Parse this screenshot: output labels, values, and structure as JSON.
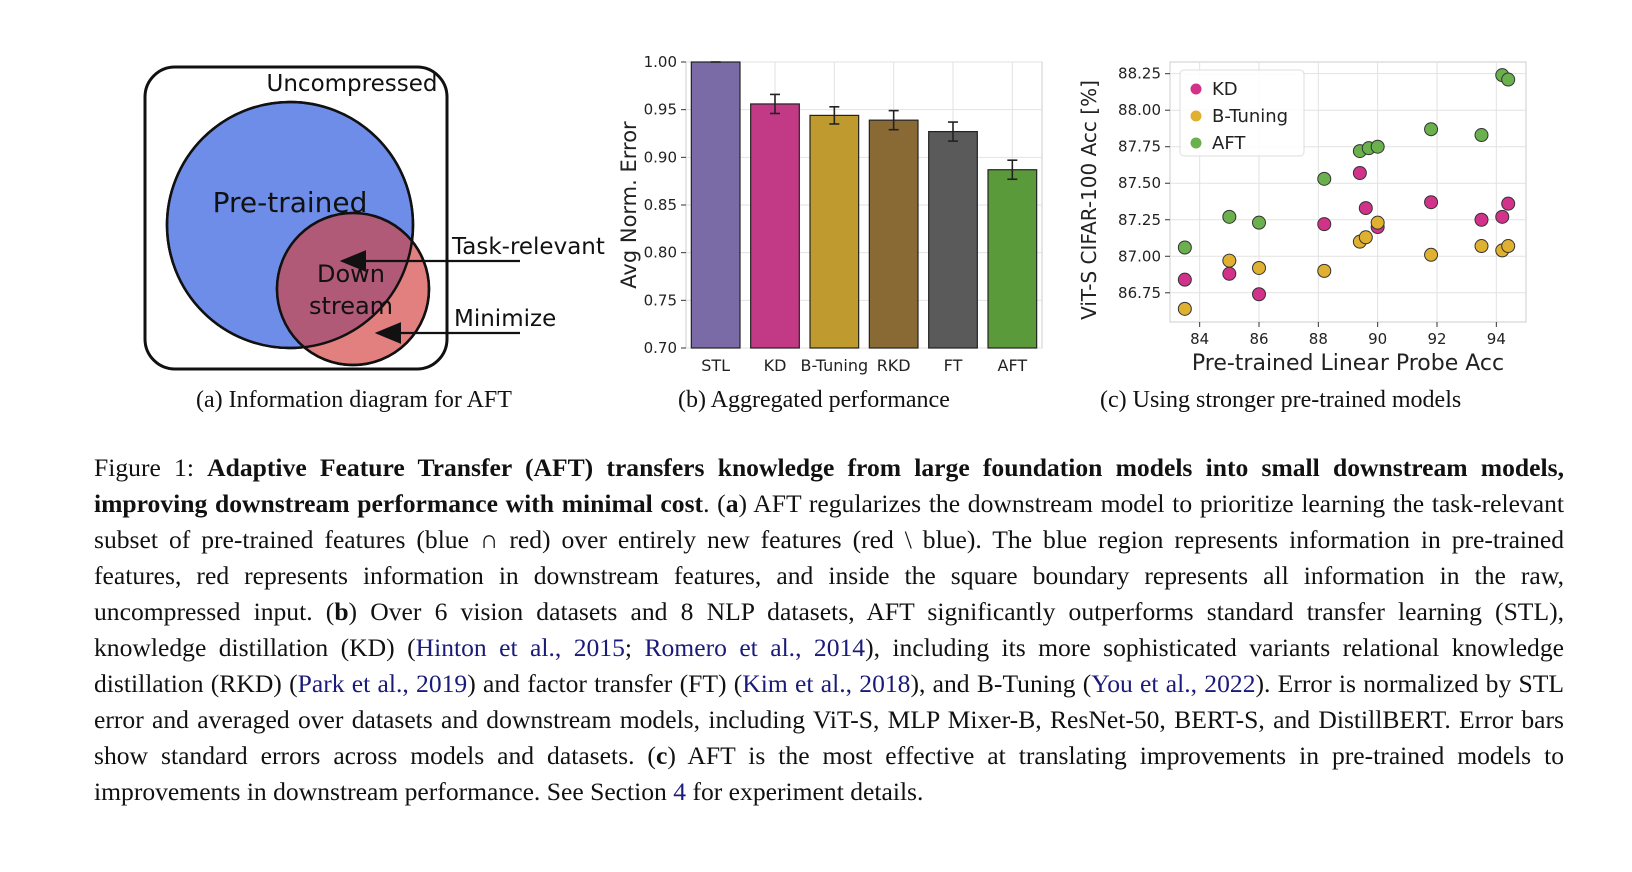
{
  "panel_a": {
    "uncompressed_label": "Uncompressed",
    "pretrained_label": "Pre-trained",
    "downstream_line1": "Down",
    "downstream_line2": "stream",
    "task_relevant_label": "Task-relevant",
    "minimize_label": "Minimize",
    "caption": "(a) Information diagram for AFT",
    "colors": {
      "pretrained": "#6e8de8",
      "downstream": "#e27f7f",
      "overlap": "#b05a78"
    }
  },
  "chart_data": [
    {
      "type": "bar",
      "categories": [
        "STL",
        "KD",
        "B-Tuning",
        "RKD",
        "FT",
        "AFT"
      ],
      "values": [
        1.0,
        0.956,
        0.944,
        0.939,
        0.927,
        0.887
      ],
      "errors": [
        0.0,
        0.01,
        0.009,
        0.01,
        0.01,
        0.01
      ],
      "colors": [
        "#7a6aa6",
        "#c23a85",
        "#bf9a2f",
        "#8a6a34",
        "#5a5a5a",
        "#5a9a3a"
      ],
      "ylabel": "Avg Norm. Error",
      "ylim": [
        0.7,
        1.0
      ],
      "yticks": [
        "0.70",
        "0.75",
        "0.80",
        "0.85",
        "0.90",
        "0.95",
        "1.00"
      ],
      "grid": true
    },
    {
      "type": "scatter",
      "xlabel": "Pre-trained Linear Probe Acc",
      "ylabel": "ViT-S CIFAR-100 Acc [%]",
      "xlim": [
        83.0,
        95.0
      ],
      "ylim": [
        86.55,
        88.33
      ],
      "xticks": [
        "84",
        "86",
        "88",
        "90",
        "92",
        "94"
      ],
      "yticks": [
        "86.75",
        "87.00",
        "87.25",
        "87.50",
        "87.75",
        "88.00",
        "88.25"
      ],
      "legend_position": "top-left",
      "grid": true,
      "series": [
        {
          "name": "KD",
          "color": "#d2328a",
          "x": [
            83.5,
            85.0,
            86.0,
            88.2,
            89.4,
            89.6,
            90.0,
            91.8,
            93.5,
            94.2,
            94.4
          ],
          "y": [
            86.84,
            86.88,
            86.74,
            87.22,
            87.57,
            87.33,
            87.2,
            87.37,
            87.25,
            87.27,
            87.36
          ]
        },
        {
          "name": "B-Tuning",
          "color": "#e0b030",
          "x": [
            83.5,
            85.0,
            86.0,
            88.2,
            89.4,
            89.6,
            90.0,
            91.8,
            93.5,
            94.2,
            94.4
          ],
          "y": [
            86.64,
            86.97,
            86.92,
            86.9,
            87.1,
            87.13,
            87.23,
            87.01,
            87.07,
            87.04,
            87.07
          ]
        },
        {
          "name": "AFT",
          "color": "#6ab04c",
          "x": [
            83.5,
            85.0,
            86.0,
            88.2,
            89.4,
            89.7,
            90.0,
            91.8,
            93.5,
            94.2,
            94.4
          ],
          "y": [
            87.06,
            87.27,
            87.23,
            87.53,
            87.72,
            87.74,
            87.75,
            87.87,
            87.83,
            88.24,
            88.21
          ]
        }
      ]
    }
  ],
  "captions": {
    "b": "(b) Aggregated performance",
    "c": "(c) Using stronger pre-trained models"
  },
  "figure_caption": {
    "prefix": "Figure 1: ",
    "bold": "Adaptive Feature Transfer (AFT) transfers knowledge from large foundation models into small downstream models, improving downstream performance with minimal cost",
    "t1": ". (",
    "a_letter": "a",
    "t2": ") AFT regularizes the downstream model to prioritize learning the task-relevant subset of pre-trained features (blue ∩ red) over entirely new features (red \\ blue). The blue region represents information in pre-trained features, red represents information in downstream features, and inside the square boundary represents all information in the raw, uncompressed input. (",
    "b_letter": "b",
    "t3": ") Over 6 vision datasets and 8 NLP datasets, AFT significantly outperforms standard transfer learning (STL), knowledge distillation (KD) (",
    "cite1": "Hinton et al., 2015",
    "t4": "; ",
    "cite2": "Romero et al., 2014",
    "t5": "), including its more sophisticated variants relational knowledge distillation (RKD) (",
    "cite3": "Park et al., 2019",
    "t6": ") and factor transfer (FT) (",
    "cite4": "Kim et al., 2018",
    "t7": "), and B-Tuning (",
    "cite5": "You et al., 2022",
    "t8": "). Error is normalized by STL error and averaged over datasets and downstream models, including ViT-S, MLP Mixer-B, ResNet-50, BERT-S, and DistillBERT. Error bars show standard errors across models and datasets. (",
    "c_letter": "c",
    "t9": ") AFT is the most effective at translating improvements in pre-trained models to improvements in downstream performance. See Section ",
    "section_ref": "4",
    "t10": " for experiment details."
  }
}
